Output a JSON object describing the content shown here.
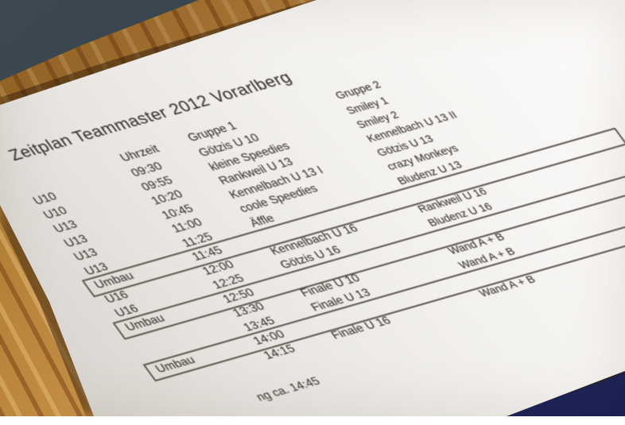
{
  "scene": {
    "colors": {
      "wall": "#3c4852",
      "wall_dark": "#2f3a43",
      "navy_mat": "#252c63",
      "navy_mat_dark": "#1b2150",
      "ink": "#403c36"
    }
  },
  "paper": {
    "title": "Zeitplan Teammaster 2012 Vorarlberg",
    "footer_visible": "ng ca. 14:45",
    "table": {
      "headers": {
        "label": "",
        "time": "Uhrzeit",
        "group1": "Gruppe 1",
        "group2": "Gruppe 2"
      },
      "rows": [
        {
          "label": "U10",
          "time": "09:30",
          "group1": "Götzis U 10",
          "group2": "Smiley 1",
          "boxed": false
        },
        {
          "label": "U10",
          "time": "09:55",
          "group1": "kleine Speedies",
          "group2": "Smiley 2",
          "boxed": false
        },
        {
          "label": "U13",
          "time": "10:20",
          "group1": "Rankweil U 13",
          "group2": "Kennelbach U 13 II",
          "boxed": false
        },
        {
          "label": "U13",
          "time": "10:45",
          "group1": "Kennelbach U 13 I",
          "group2": "Götzis U 13",
          "boxed": false
        },
        {
          "label": "U13",
          "time": "11:00",
          "group1": "coole Speedies",
          "group2": "crazy Monkeys",
          "boxed": false
        },
        {
          "label": "U13",
          "time": "11:25",
          "group1": "Äffle",
          "group2": "Bludenz U 13",
          "boxed": false
        },
        {
          "label": "Umbau",
          "time": "11:45",
          "group1": "",
          "group2": "",
          "boxed": true
        },
        {
          "label": "U16",
          "time": "12:00",
          "group1": "Kennelbach U 16",
          "group2": "Rankweil U 16",
          "boxed": false
        },
        {
          "label": "U16",
          "time": "12:25",
          "group1": "Götzis U 16",
          "group2": "Bludenz U 16",
          "boxed": false
        },
        {
          "label": "Umbau",
          "time": "12:50",
          "group1": "",
          "group2": "",
          "boxed": true
        },
        {
          "label": "",
          "time": "13:30",
          "group1": "Finale U 10",
          "group2": "Wand A + B",
          "boxed": false
        },
        {
          "label": "",
          "time": "13:45",
          "group1": "Finale U 13",
          "group2": "Wand A + B",
          "boxed": false
        },
        {
          "label": "Umbau",
          "time": "14:00",
          "group1": "",
          "group2": "",
          "boxed": true
        },
        {
          "label": "",
          "time": "14:15",
          "group1": "Finale U 16",
          "group2": "Wand A + B",
          "boxed": false
        }
      ]
    }
  }
}
